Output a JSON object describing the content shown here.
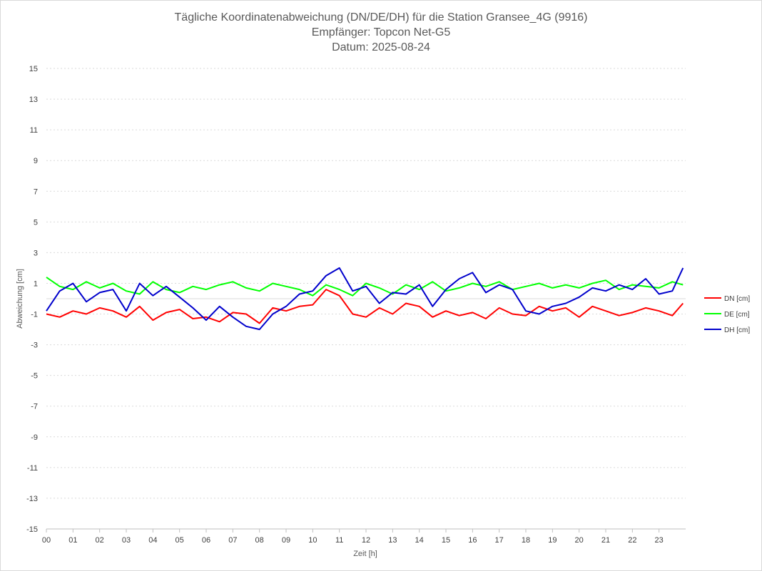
{
  "chart_data": {
    "type": "line",
    "title_lines": [
      "Tägliche Koordinatenabweichung (DN/DE/DH) für die Station Gransee_4G (9916)",
      "Empfänger: Topcon Net-G5",
      "Datum: 2025-08-24"
    ],
    "xlabel": "Zeit [h]",
    "ylabel": "Abweichung [cm]",
    "xlim": [
      0,
      24
    ],
    "ylim": [
      -15,
      15
    ],
    "x_ticks": [
      "00",
      "01",
      "02",
      "03",
      "04",
      "05",
      "06",
      "07",
      "08",
      "09",
      "10",
      "11",
      "12",
      "13",
      "14",
      "15",
      "16",
      "17",
      "18",
      "19",
      "20",
      "21",
      "22",
      "23"
    ],
    "y_ticks": [
      "15",
      "13",
      "11",
      "9",
      "7",
      "5",
      "3",
      "1",
      "-1",
      "-3",
      "-5",
      "-7",
      "-9",
      "-11",
      "-13",
      "-15"
    ],
    "gridlines": true,
    "legend_position": "right",
    "x": [
      0,
      0.5,
      1,
      1.5,
      2,
      2.5,
      3,
      3.5,
      4,
      4.5,
      5,
      5.5,
      6,
      6.5,
      7,
      7.5,
      8,
      8.5,
      9,
      9.5,
      10,
      10.5,
      11,
      11.5,
      12,
      12.5,
      13,
      13.5,
      14,
      14.5,
      15,
      15.5,
      16,
      16.5,
      17,
      17.5,
      18,
      18.5,
      19,
      19.5,
      20,
      20.5,
      21,
      21.5,
      22,
      22.5,
      23,
      23.5,
      23.9
    ],
    "series": [
      {
        "name": "DN [cm]",
        "color": "#ff0000",
        "values": [
          -1.0,
          -1.2,
          -0.8,
          -1.0,
          -0.6,
          -0.8,
          -1.2,
          -0.5,
          -1.4,
          -0.9,
          -0.7,
          -1.3,
          -1.2,
          -1.5,
          -0.9,
          -1.0,
          -1.6,
          -0.6,
          -0.8,
          -0.5,
          -0.4,
          0.6,
          0.2,
          -1.0,
          -1.2,
          -0.6,
          -1.0,
          -0.3,
          -0.5,
          -1.2,
          -0.8,
          -1.1,
          -0.9,
          -1.3,
          -0.6,
          -1.0,
          -1.1,
          -0.5,
          -0.8,
          -0.6,
          -1.2,
          -0.5,
          -0.8,
          -1.1,
          -0.9,
          -0.6,
          -0.8,
          -1.1,
          -0.3
        ]
      },
      {
        "name": "DE [cm]",
        "color": "#00ff00",
        "values": [
          1.4,
          0.8,
          0.6,
          1.1,
          0.7,
          1.0,
          0.5,
          0.3,
          1.1,
          0.6,
          0.4,
          0.8,
          0.6,
          0.9,
          1.1,
          0.7,
          0.5,
          1.0,
          0.8,
          0.6,
          0.2,
          0.9,
          0.6,
          0.2,
          1.0,
          0.7,
          0.3,
          0.9,
          0.6,
          1.1,
          0.5,
          0.7,
          1.0,
          0.8,
          1.1,
          0.6,
          0.8,
          1.0,
          0.7,
          0.9,
          0.7,
          1.0,
          1.2,
          0.6,
          0.9,
          0.8,
          0.7,
          1.1,
          0.9
        ]
      },
      {
        "name": "DH [cm]",
        "color": "#0000cc",
        "values": [
          -0.8,
          0.5,
          1.0,
          -0.2,
          0.4,
          0.6,
          -0.8,
          1.0,
          0.2,
          0.8,
          0.1,
          -0.6,
          -1.4,
          -0.5,
          -1.2,
          -1.8,
          -2.0,
          -1.0,
          -0.5,
          0.3,
          0.5,
          1.5,
          2.0,
          0.5,
          0.8,
          -0.3,
          0.4,
          0.3,
          0.9,
          -0.5,
          0.6,
          1.3,
          1.7,
          0.4,
          0.9,
          0.6,
          -0.8,
          -1.0,
          -0.5,
          -0.3,
          0.1,
          0.7,
          0.5,
          0.9,
          0.6,
          1.3,
          0.3,
          0.5,
          2.0
        ]
      }
    ]
  }
}
